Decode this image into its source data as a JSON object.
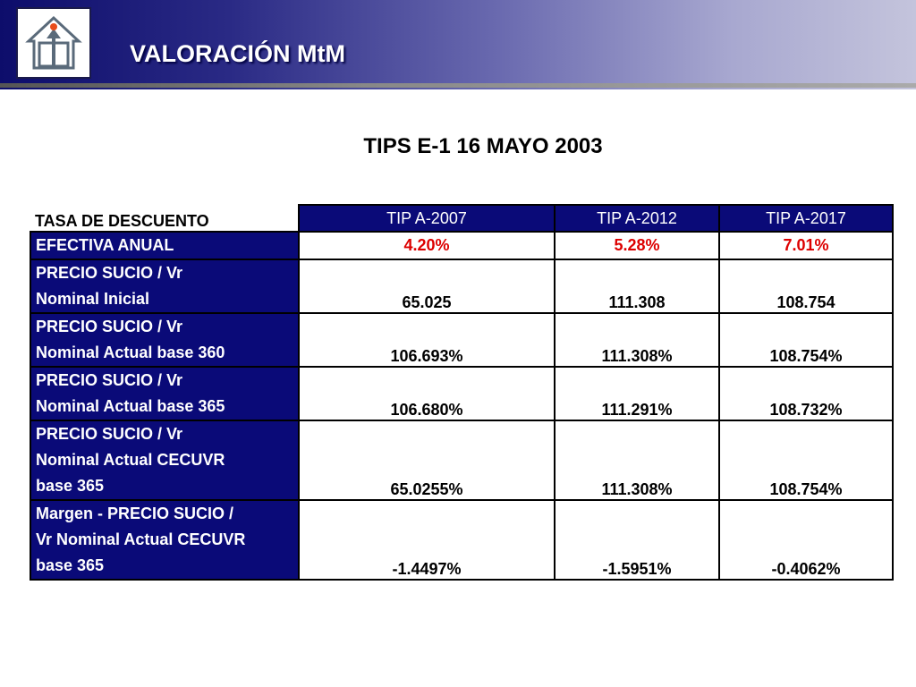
{
  "header": {
    "title": "VALORACIÓN MtM",
    "logo_icon": "house-arrow-icon"
  },
  "subtitle": "TIPS E-1 16 MAYO 2003",
  "table": {
    "corner_label": "TASA DE DESCUENTO",
    "columns": [
      "TIP A-2007",
      "TIP A-2012",
      "TIP A-2017"
    ],
    "rows": [
      {
        "label_lines": [
          "EFECTIVA ANUAL"
        ],
        "values": [
          "4.20%",
          "5.28%",
          "7.01%"
        ],
        "color": "#dd0000"
      },
      {
        "label_lines": [
          "PRECIO SUCIO / Vr",
          "Nominal Inicial"
        ],
        "values": [
          "65.025",
          "111.308",
          "108.754"
        ]
      },
      {
        "label_lines": [
          "PRECIO SUCIO / Vr",
          "Nominal Actual base 360"
        ],
        "values": [
          "106.693%",
          "111.308%",
          "108.754%"
        ]
      },
      {
        "label_lines": [
          "PRECIO SUCIO / Vr",
          "Nominal Actual base 365"
        ],
        "values": [
          "106.680%",
          "111.291%",
          "108.732%"
        ]
      },
      {
        "label_lines": [
          "PRECIO SUCIO / Vr",
          "Nominal Actual CECUVR",
          "base 365"
        ],
        "values": [
          "65.0255%",
          "111.308%",
          "108.754%"
        ]
      },
      {
        "label_lines": [
          "Margen - PRECIO SUCIO /",
          "Vr Nominal Actual CECUVR",
          "base 365"
        ],
        "values": [
          "-1.4497%",
          "-1.5951%",
          "-0.4062%"
        ]
      }
    ]
  },
  "colors": {
    "header_navy": "#0d0d6b",
    "cell_navy": "#0a0a78",
    "highlight_red": "#dd0000"
  }
}
